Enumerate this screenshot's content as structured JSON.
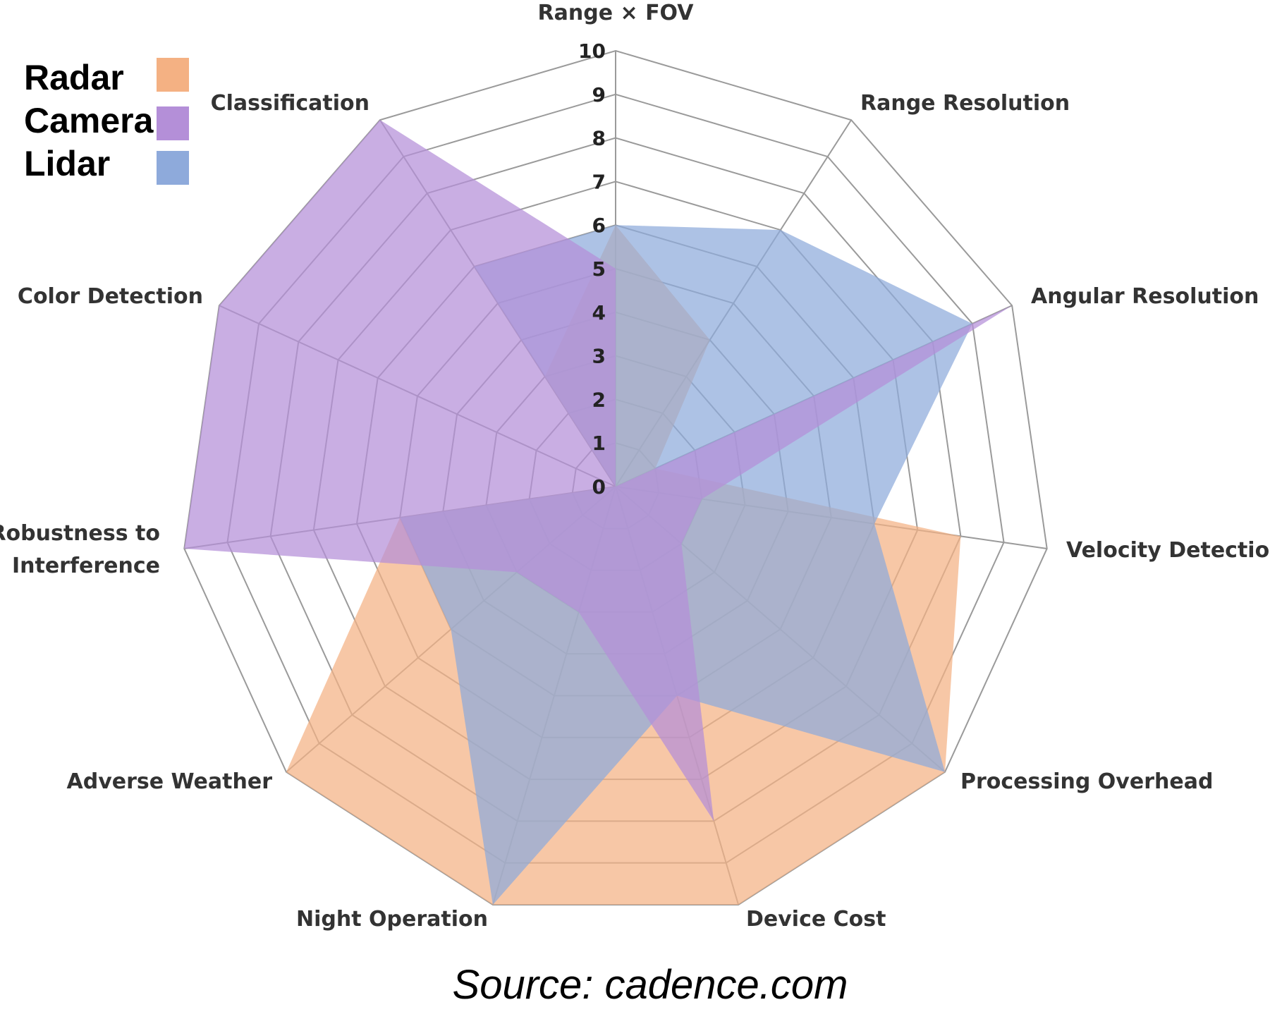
{
  "chart_data": {
    "type": "radar",
    "axes": [
      "Range × FOV",
      "Range Resolution",
      "Angular Resolution",
      "Velocity Detection",
      "Processing Overhead",
      "Device Cost",
      "Night Operation",
      "Adverse Weather",
      "Robustness to|Interference",
      "Color Detection",
      "Classification"
    ],
    "rlim": [
      0,
      10
    ],
    "ticks": [
      "0",
      "1",
      "2",
      "3",
      "4",
      "5",
      "6",
      "7",
      "8",
      "9",
      "10"
    ],
    "series": [
      {
        "name": "Radar",
        "color": "#f4b183",
        "values": [
          6,
          4,
          1,
          8,
          10,
          10,
          10,
          10,
          5,
          0,
          3
        ]
      },
      {
        "name": "Lidar",
        "color": "#8eaadb",
        "values": [
          6,
          7,
          9,
          6,
          10,
          5,
          10,
          5,
          5,
          0,
          6
        ]
      },
      {
        "name": "Camera",
        "color": "#b48fd8",
        "values": [
          5,
          0,
          10,
          2,
          2,
          8,
          3,
          3,
          10,
          10,
          10
        ]
      }
    ],
    "legend": [
      "Radar",
      "Camera",
      "Lidar"
    ],
    "legend_position": "top-left",
    "grid": true
  },
  "source": "Source: cadence.com"
}
